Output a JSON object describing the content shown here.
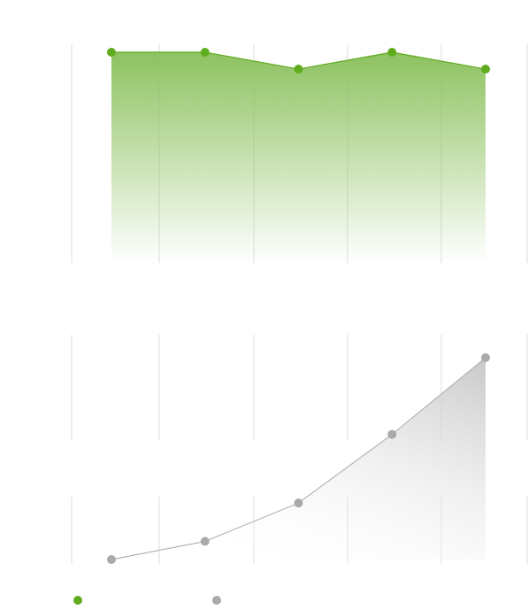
{
  "chart_data": [
    {
      "type": "area",
      "categories": [
        null,
        null,
        null,
        null,
        null
      ],
      "ylim": [
        0,
        100
      ],
      "series": [
        {
          "color": "#5fac1f",
          "values": [
            100,
            100,
            92,
            100,
            92
          ]
        }
      ]
    },
    {
      "type": "area",
      "categories": [
        null,
        null,
        null,
        null,
        null
      ],
      "ylim": [
        0,
        100
      ],
      "series": [
        {
          "color": "#aaaaaa",
          "values": [
            0,
            9,
            28,
            62,
            100
          ]
        }
      ]
    }
  ]
}
